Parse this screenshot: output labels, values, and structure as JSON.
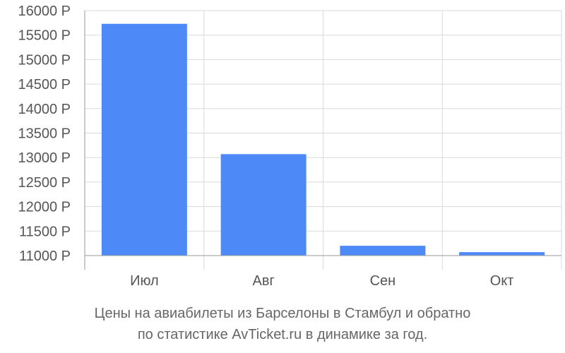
{
  "chart_data": {
    "type": "bar",
    "categories": [
      "Июл",
      "Авг",
      "Сен",
      "Окт"
    ],
    "values": [
      15730,
      13070,
      11200,
      11070
    ],
    "ylim": [
      11000,
      16000
    ],
    "yticks": [
      11000,
      11500,
      12000,
      12500,
      13000,
      13500,
      14000,
      14500,
      15000,
      15500,
      16000
    ],
    "tick_suffix": " Р",
    "grid": true,
    "bar_color": "#4d8af8",
    "grid_color": "#d9d9d9",
    "axis_color": "#999999"
  },
  "caption": {
    "line1": "Цены на авиабилеты из Барселоны в Стамбул и обратно",
    "line2": "по статистике AvTicket.ru в динамике за год."
  }
}
